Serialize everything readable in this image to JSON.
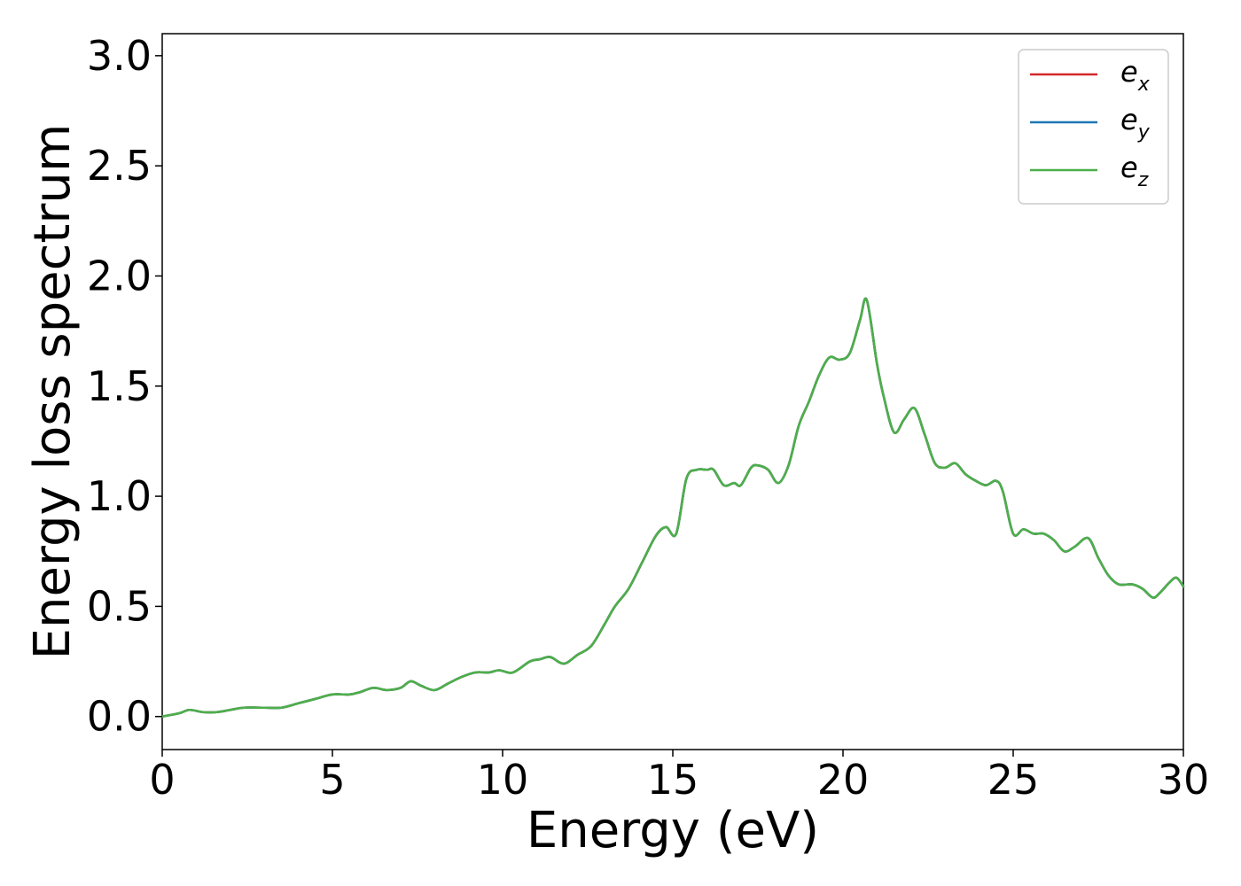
{
  "chart_data": {
    "type": "line",
    "title": "",
    "xlabel": "Energy (eV)",
    "ylabel": "Energy loss spectrum",
    "xlim": [
      0,
      30
    ],
    "ylim": [
      -0.15,
      3.1
    ],
    "xticks": [
      0,
      5,
      10,
      15,
      20,
      25,
      30
    ],
    "xtick_labels": [
      "0",
      "5",
      "10",
      "15",
      "20",
      "25",
      "30"
    ],
    "yticks": [
      0.0,
      0.5,
      1.0,
      1.5,
      2.0,
      2.5,
      3.0
    ],
    "ytick_labels": [
      "0.0",
      "0.5",
      "1.0",
      "1.5",
      "2.0",
      "2.5",
      "3.0"
    ],
    "grid": false,
    "legend_position": "top-right",
    "colors": {
      "e_x": "#d62728",
      "e_y": "#1f77b4",
      "e_z": "#4daf4a"
    },
    "legend": [
      {
        "base": "e",
        "sub": "x",
        "color": "#d62728"
      },
      {
        "base": "e",
        "sub": "y",
        "color": "#1f77b4"
      },
      {
        "base": "e",
        "sub": "z",
        "color": "#4daf4a"
      }
    ],
    "x": [
      0,
      0.5,
      0.8,
      1.2,
      1.6,
      2.0,
      2.4,
      3.0,
      3.5,
      4.0,
      4.5,
      5.0,
      5.5,
      5.8,
      6.2,
      6.6,
      7.0,
      7.3,
      7.6,
      8.0,
      8.4,
      8.8,
      9.2,
      9.6,
      9.9,
      10.3,
      10.8,
      11.1,
      11.4,
      11.8,
      12.2,
      12.6,
      13.0,
      13.3,
      13.7,
      14.1,
      14.5,
      14.8,
      15.1,
      15.4,
      15.7,
      16.0,
      16.2,
      16.5,
      16.8,
      17.0,
      17.3,
      17.5,
      17.8,
      18.1,
      18.4,
      18.7,
      19.0,
      19.3,
      19.6,
      19.9,
      20.2,
      20.5,
      20.7,
      21.0,
      21.2,
      21.5,
      21.8,
      22.1,
      22.4,
      22.7,
      23.0,
      23.3,
      23.6,
      23.9,
      24.2,
      24.5,
      24.7,
      25.0,
      25.3,
      25.6,
      25.9,
      26.2,
      26.5,
      26.8,
      27.2,
      27.5,
      27.8,
      28.1,
      28.5,
      28.8,
      29.1,
      29.3,
      29.6,
      29.8,
      30.0
    ],
    "series": [
      {
        "name": "e_x",
        "values": [
          0.0,
          0.015,
          0.03,
          0.02,
          0.02,
          0.03,
          0.04,
          0.04,
          0.04,
          0.06,
          0.08,
          0.1,
          0.1,
          0.11,
          0.13,
          0.12,
          0.13,
          0.16,
          0.14,
          0.12,
          0.15,
          0.18,
          0.2,
          0.2,
          0.21,
          0.2,
          0.25,
          0.26,
          0.27,
          0.24,
          0.28,
          0.32,
          0.42,
          0.5,
          0.58,
          0.7,
          0.82,
          0.86,
          0.83,
          1.08,
          1.12,
          1.12,
          1.12,
          1.05,
          1.06,
          1.05,
          1.13,
          1.14,
          1.12,
          1.06,
          1.14,
          1.32,
          1.43,
          1.55,
          1.63,
          1.62,
          1.65,
          1.8,
          1.89,
          1.6,
          1.45,
          1.29,
          1.35,
          1.4,
          1.28,
          1.15,
          1.13,
          1.15,
          1.1,
          1.07,
          1.05,
          1.07,
          1.02,
          0.83,
          0.85,
          0.83,
          0.83,
          0.8,
          0.75,
          0.77,
          0.81,
          0.72,
          0.64,
          0.6,
          0.6,
          0.58,
          0.54,
          0.56,
          0.61,
          0.63,
          0.59
        ]
      },
      {
        "name": "e_y",
        "values": [
          0.0,
          0.015,
          0.03,
          0.02,
          0.02,
          0.03,
          0.04,
          0.04,
          0.04,
          0.06,
          0.08,
          0.1,
          0.1,
          0.11,
          0.13,
          0.12,
          0.13,
          0.16,
          0.14,
          0.12,
          0.15,
          0.18,
          0.2,
          0.2,
          0.21,
          0.2,
          0.25,
          0.26,
          0.27,
          0.24,
          0.28,
          0.32,
          0.42,
          0.5,
          0.58,
          0.7,
          0.82,
          0.86,
          0.83,
          1.08,
          1.12,
          1.12,
          1.12,
          1.05,
          1.06,
          1.05,
          1.13,
          1.14,
          1.12,
          1.06,
          1.14,
          1.32,
          1.43,
          1.55,
          1.63,
          1.62,
          1.65,
          1.8,
          1.89,
          1.6,
          1.45,
          1.29,
          1.35,
          1.4,
          1.28,
          1.15,
          1.13,
          1.15,
          1.1,
          1.07,
          1.05,
          1.07,
          1.02,
          0.83,
          0.85,
          0.83,
          0.83,
          0.8,
          0.75,
          0.77,
          0.81,
          0.72,
          0.64,
          0.6,
          0.6,
          0.58,
          0.54,
          0.56,
          0.61,
          0.63,
          0.59
        ]
      },
      {
        "name": "e_z",
        "values": [
          0.0,
          0.015,
          0.03,
          0.02,
          0.02,
          0.03,
          0.04,
          0.04,
          0.04,
          0.06,
          0.08,
          0.1,
          0.1,
          0.11,
          0.13,
          0.12,
          0.13,
          0.16,
          0.14,
          0.12,
          0.15,
          0.18,
          0.2,
          0.2,
          0.21,
          0.2,
          0.25,
          0.26,
          0.27,
          0.24,
          0.28,
          0.32,
          0.42,
          0.5,
          0.58,
          0.7,
          0.82,
          0.86,
          0.83,
          1.08,
          1.12,
          1.12,
          1.12,
          1.05,
          1.06,
          1.05,
          1.13,
          1.14,
          1.12,
          1.06,
          1.14,
          1.32,
          1.43,
          1.55,
          1.63,
          1.62,
          1.65,
          1.8,
          1.89,
          1.6,
          1.45,
          1.29,
          1.35,
          1.4,
          1.28,
          1.15,
          1.13,
          1.15,
          1.1,
          1.07,
          1.05,
          1.07,
          1.02,
          0.83,
          0.85,
          0.83,
          0.83,
          0.8,
          0.75,
          0.77,
          0.81,
          0.72,
          0.64,
          0.6,
          0.6,
          0.58,
          0.54,
          0.56,
          0.61,
          0.63,
          0.59
        ]
      }
    ]
  }
}
